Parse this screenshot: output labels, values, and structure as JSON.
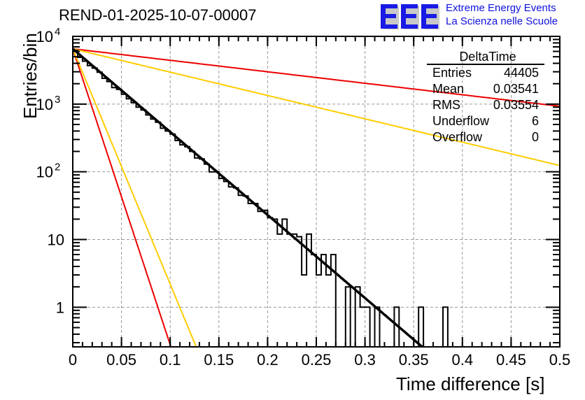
{
  "title": "REND-01-2025-10-07-00007",
  "logo": {
    "letters": "EEE",
    "line1": "Extreme Energy Events",
    "line2": "La Scienza nelle Scuole",
    "color": "#1010e0"
  },
  "stats_box": {
    "name": "DeltaTime",
    "rows": [
      {
        "label": "Entries",
        "value": "44405"
      },
      {
        "label": "Mean",
        "value": "0.03541"
      },
      {
        "label": "RMS",
        "value": "0.03554"
      },
      {
        "label": "Underflow",
        "value": "6"
      },
      {
        "label": "Overflow",
        "value": "0"
      }
    ]
  },
  "chart_data": {
    "type": "histogram",
    "title": "REND-01-2025-10-07-00007",
    "xlabel": "Time difference [s]",
    "ylabel": "Entries/bin",
    "xlim": [
      0,
      0.5
    ],
    "ylim": [
      0.26,
      10000
    ],
    "yscale": "log",
    "grid": true,
    "x_ticks": [
      "0",
      "0.05",
      "0.1",
      "0.15",
      "0.2",
      "0.25",
      "0.3",
      "0.35",
      "0.4",
      "0.45",
      "0.5"
    ],
    "x_tick_values": [
      0,
      0.05,
      0.1,
      0.15,
      0.2,
      0.25,
      0.3,
      0.35,
      0.4,
      0.45,
      0.5
    ],
    "y_ticks": [
      {
        "value": 10000,
        "base": "10",
        "exp": "4"
      },
      {
        "value": 1000,
        "base": "10",
        "exp": "3"
      },
      {
        "value": 100,
        "base": "10",
        "exp": "2"
      },
      {
        "value": 10,
        "base": "10",
        "exp": ""
      },
      {
        "value": 1,
        "base": "1",
        "exp": ""
      }
    ],
    "bin_width": 0.005,
    "histogram": {
      "name": "DeltaTime",
      "color": "#000000",
      "bin_start": 0,
      "values": [
        6100,
        5000,
        4300,
        3800,
        3300,
        2900,
        2450,
        2100,
        1830,
        1620,
        1400,
        1230,
        1040,
        930,
        800,
        700,
        610,
        520,
        450,
        400,
        350,
        300,
        260,
        225,
        200,
        170,
        150,
        132,
        110,
        98,
        85,
        72,
        64,
        56,
        48,
        42,
        37,
        32,
        27,
        25,
        22,
        19,
        16,
        14,
        12,
        11,
        9,
        8,
        7,
        6.2,
        5.5,
        4.7,
        4,
        3.5,
        3,
        2.6,
        2.3,
        2,
        1.7,
        1.5,
        1.3,
        1.1,
        1,
        0.85,
        0.75,
        0.64,
        0.56,
        0.49,
        0.42,
        0.37,
        0.32,
        0.28,
        0.24,
        0.21,
        0,
        0,
        0,
        0,
        0,
        0,
        0,
        0,
        0,
        0,
        0,
        0,
        0,
        0,
        0,
        0,
        0,
        0,
        0,
        0,
        0,
        0,
        0,
        0,
        0,
        0
      ],
      "observed_values": [
        6200,
        4900,
        4300,
        3700,
        3400,
        2950,
        2400,
        2150,
        1750,
        1650,
        1400,
        1200,
        1050,
        900,
        820,
        690,
        600,
        540,
        440,
        400,
        360,
        290,
        250,
        235,
        200,
        160,
        155,
        130,
        100,
        100,
        80,
        72,
        60,
        58,
        45,
        44,
        34,
        34,
        26,
        27,
        21,
        20,
        12,
        20,
        12,
        12,
        11,
        3,
        12,
        6,
        3,
        6,
        3,
        6,
        0,
        0,
        2,
        0,
        2,
        1,
        1,
        0,
        1,
        0,
        0,
        0,
        1,
        0,
        0,
        0,
        0,
        1,
        0,
        0,
        0,
        0,
        1,
        0,
        0,
        0,
        0,
        0,
        0,
        0,
        0,
        0,
        0,
        0,
        0,
        0,
        0,
        0,
        0,
        0,
        0,
        0,
        0,
        0,
        0,
        0
      ]
    },
    "curves": [
      {
        "name": "fit",
        "color": "#000000",
        "type": "exponential",
        "amplitude": 6550,
        "tau": 0.0354
      },
      {
        "name": "red-slow",
        "color": "#ee0000",
        "type": "exponential",
        "amplitude": 6550,
        "tau": 0.256
      },
      {
        "name": "yellow-slow",
        "color": "#ffcc00",
        "type": "exponential",
        "amplitude": 6550,
        "tau": 0.126
      },
      {
        "name": "red-fast",
        "color": "#ee0000",
        "type": "exponential",
        "amplitude": 6550,
        "tau": 0.00994
      },
      {
        "name": "yellow-fast",
        "color": "#ffcc00",
        "type": "exponential",
        "amplitude": 6550,
        "tau": 0.0125
      }
    ]
  }
}
